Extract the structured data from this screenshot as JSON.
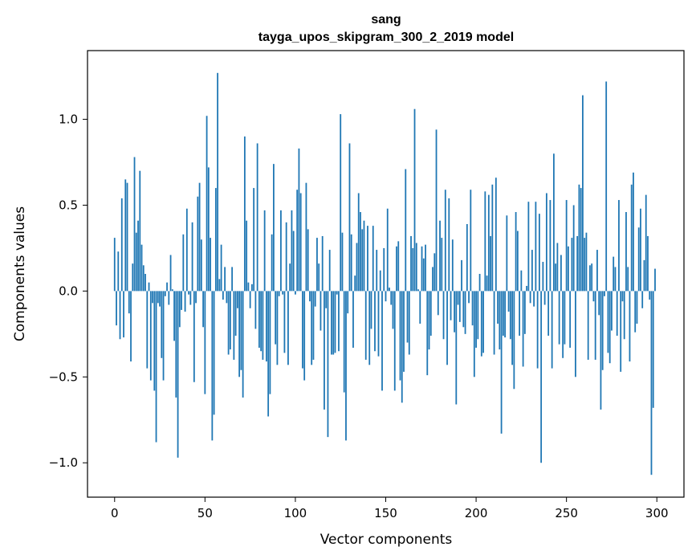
{
  "chart_data": {
    "type": "bar",
    "title": "sang",
    "subtitle": "tayga_upos_skipgram_300_2_2019 model",
    "xlabel": "Vector components",
    "ylabel": "Components values",
    "xlim": [
      -15,
      315
    ],
    "ylim": [
      -1.2,
      1.4
    ],
    "xticks": [
      0,
      50,
      100,
      150,
      200,
      250,
      300
    ],
    "yticks": [
      -1.0,
      -0.5,
      0.0,
      0.5,
      1.0
    ],
    "ytick_labels": [
      "−1.0",
      "−0.5",
      "0.0",
      "0.5",
      "1.0"
    ],
    "grid": false,
    "legend": false,
    "bar_color": "#1f77b4",
    "x_start": 0,
    "values": [
      0.31,
      -0.2,
      0.23,
      -0.28,
      0.54,
      -0.27,
      0.65,
      0.63,
      -0.13,
      -0.41,
      0.16,
      0.78,
      0.34,
      0.41,
      0.7,
      0.27,
      0.15,
      0.1,
      -0.45,
      0.05,
      -0.52,
      -0.07,
      -0.58,
      -0.88,
      -0.07,
      -0.09,
      -0.39,
      -0.52,
      -0.03,
      0.05,
      -0.08,
      0.21,
      0.01,
      -0.29,
      -0.62,
      -0.97,
      -0.21,
      -0.11,
      0.33,
      -0.12,
      0.48,
      -0.02,
      -0.08,
      0.4,
      -0.53,
      -0.07,
      0.55,
      0.63,
      0.3,
      -0.21,
      -0.6,
      1.02,
      0.72,
      0.31,
      -0.87,
      -0.72,
      0.6,
      1.27,
      0.07,
      0.27,
      -0.05,
      0.14,
      -0.07,
      -0.37,
      -0.34,
      0.14,
      -0.4,
      -0.26,
      -0.1,
      -0.5,
      -0.46,
      -0.62,
      0.9,
      0.41,
      0.05,
      -0.1,
      0.04,
      0.6,
      -0.22,
      0.86,
      -0.33,
      -0.35,
      -0.4,
      0.47,
      -0.41,
      -0.73,
      -0.6,
      0.33,
      0.74,
      -0.31,
      -0.43,
      -0.03,
      0.47,
      -0.02,
      -0.36,
      0.4,
      -0.43,
      0.16,
      0.47,
      0.35,
      -0.02,
      0.59,
      0.83,
      0.57,
      -0.45,
      -0.52,
      0.63,
      0.36,
      -0.06,
      -0.43,
      -0.4,
      -0.09,
      0.31,
      0.16,
      -0.23,
      0.32,
      -0.69,
      -0.1,
      -0.85,
      0.24,
      -0.37,
      -0.37,
      -0.36,
      -0.02,
      -0.35,
      1.03,
      0.34,
      -0.59,
      -0.87,
      -0.13,
      0.86,
      0.33,
      -0.33,
      0.09,
      0.28,
      0.57,
      0.46,
      0.36,
      0.41,
      -0.4,
      0.38,
      -0.43,
      -0.22,
      0.38,
      -0.35,
      0.24,
      -0.38,
      0.12,
      -0.58,
      0.25,
      -0.06,
      0.48,
      0.02,
      -0.08,
      -0.22,
      -0.58,
      0.26,
      0.29,
      -0.52,
      -0.65,
      -0.47,
      0.71,
      -0.3,
      -0.37,
      0.32,
      0.25,
      1.06,
      0.28,
      0.01,
      -0.19,
      0.26,
      0.19,
      0.27,
      -0.49,
      -0.34,
      -0.26,
      0.14,
      0.22,
      0.94,
      -0.14,
      0.41,
      0.31,
      -0.28,
      0.59,
      -0.43,
      0.54,
      -0.17,
      0.3,
      -0.24,
      -0.66,
      -0.08,
      -0.18,
      0.18,
      -0.21,
      -0.25,
      0.39,
      -0.07,
      0.59,
      -0.2,
      -0.5,
      -0.33,
      -0.28,
      0.1,
      -0.38,
      -0.36,
      0.58,
      0.09,
      0.56,
      0.32,
      0.62,
      -0.37,
      0.66,
      -0.19,
      -0.34,
      -0.83,
      -0.26,
      -0.27,
      0.44,
      -0.12,
      -0.28,
      -0.43,
      -0.57,
      0.46,
      0.35,
      -0.26,
      0.12,
      -0.44,
      -0.25,
      0.03,
      0.52,
      -0.07,
      0.24,
      -0.09,
      0.52,
      -0.45,
      0.45,
      -1.0,
      0.17,
      -0.08,
      0.57,
      -0.26,
      0.53,
      -0.45,
      0.8,
      0.16,
      0.28,
      -0.31,
      0.21,
      -0.39,
      -0.31,
      0.53,
      0.26,
      -0.33,
      0.31,
      0.5,
      -0.5,
      0.32,
      0.62,
      0.6,
      1.14,
      0.31,
      0.34,
      -0.4,
      0.15,
      0.16,
      -0.06,
      -0.4,
      0.24,
      -0.14,
      -0.69,
      -0.46,
      -0.03,
      1.22,
      -0.36,
      -0.42,
      -0.23,
      0.2,
      0.14,
      -0.26,
      0.53,
      -0.47,
      -0.06,
      -0.28,
      0.46,
      0.14,
      -0.41,
      0.62,
      0.69,
      -0.24,
      -0.19,
      0.37,
      0.48,
      -0.1,
      0.18,
      0.56,
      0.32,
      -0.05,
      -1.07,
      -0.68,
      0.13
    ]
  }
}
